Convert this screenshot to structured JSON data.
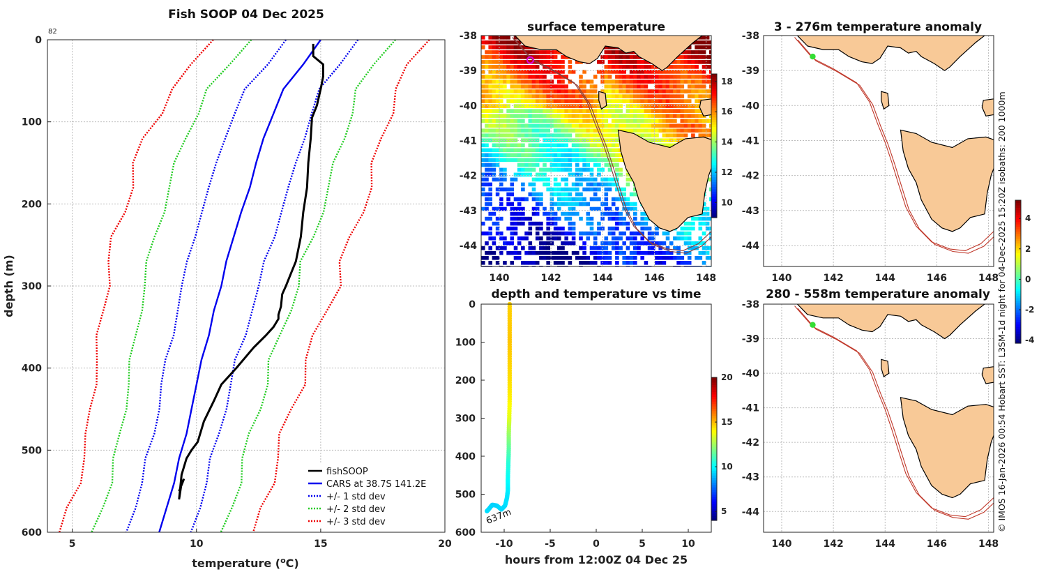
{
  "chart_data": [
    {
      "type": "line",
      "id": "profile",
      "title": "Fish SOOP 04 Dec 2025",
      "xlabel": "temperature (oC)",
      "ylabel": "depth (m)",
      "xlim": [
        4,
        20
      ],
      "ylim": [
        0,
        600
      ],
      "y_reversed": true,
      "xticks": [
        "5",
        "10",
        "15",
        "20"
      ],
      "xtick_values": [
        5,
        10,
        15,
        20
      ],
      "yticks": [
        "0",
        "100",
        "200",
        "300",
        "400",
        "500",
        "600"
      ],
      "ytick_values": [
        0,
        100,
        200,
        300,
        400,
        500,
        600
      ],
      "corner_label": "82",
      "depths": [
        0,
        30,
        60,
        90,
        120,
        150,
        180,
        210,
        240,
        270,
        300,
        330,
        360,
        390,
        420,
        450,
        480,
        510,
        540,
        570,
        600
      ],
      "cars_mean": [
        15.0,
        14.3,
        13.5,
        13.1,
        12.7,
        12.4,
        12.15,
        11.8,
        11.5,
        11.2,
        11.0,
        10.7,
        10.5,
        10.2,
        10.0,
        9.8,
        9.6,
        9.3,
        9.1,
        8.8,
        8.5
      ],
      "cars_std": [
        1.45,
        1.45,
        1.5,
        1.55,
        1.6,
        1.6,
        1.6,
        1.6,
        1.6,
        1.55,
        1.55,
        1.5,
        1.45,
        1.4,
        1.4,
        1.35,
        1.3,
        1.3,
        1.3,
        1.3,
        1.3
      ],
      "series": [
        {
          "name": "fishSOOP",
          "color": "#000000",
          "style": "solid",
          "temperature": [
            14.7,
            14.7,
            15.1,
            15.1,
            15.0,
            14.85,
            14.65,
            14.6,
            14.5,
            14.45,
            14.3,
            14.2,
            14.0,
            13.8,
            13.6,
            13.45,
            13.4,
            13.3,
            13.3,
            13.1,
            12.8,
            12.3,
            11.6,
            11.0,
            10.7,
            10.3,
            10.05,
            9.8,
            9.6,
            9.4,
            9.35,
            9.3,
            9.4,
            9.5,
            9.3
          ],
          "depth": [
            5,
            20,
            30,
            45,
            60,
            80,
            95,
            120,
            150,
            180,
            210,
            240,
            270,
            285,
            300,
            310,
            325,
            335,
            340,
            350,
            360,
            375,
            400,
            420,
            440,
            465,
            490,
            500,
            510,
            530,
            545,
            560,
            540,
            535,
            550
          ]
        },
        {
          "name": "CARS at 38.7S 141.2E",
          "color": "#0000ee",
          "style": "solid",
          "k": 0
        },
        {
          "name": "+/- 1 std dev",
          "color": "#0000ee",
          "style": "dotted",
          "k": 1
        },
        {
          "name": "+/- 2 std dev",
          "color": "#22cc22",
          "style": "dotted",
          "k": 2
        },
        {
          "name": "+/- 3 std dev",
          "color": "#ee0000",
          "style": "dotted",
          "k": 3
        }
      ]
    },
    {
      "type": "heatmap",
      "id": "sst",
      "title": "surface temperature",
      "xlim": [
        139.3,
        148.2
      ],
      "ylim": [
        -44.6,
        -38
      ],
      "xticks": [
        "140",
        "142",
        "144",
        "146",
        "148"
      ],
      "xtick_values": [
        140,
        142,
        144,
        146,
        148
      ],
      "yticks": [
        "-38",
        "-39",
        "-40",
        "-41",
        "-42",
        "-43",
        "-44"
      ],
      "ytick_values": [
        -38,
        -39,
        -40,
        -41,
        -42,
        -43,
        -44
      ],
      "colorbar": {
        "min": 9,
        "max": 18.5,
        "ticks": [
          "10",
          "12",
          "14",
          "16",
          "18"
        ],
        "tick_values": [
          10,
          12,
          14,
          16,
          18
        ]
      },
      "marker": {
        "lon": 141.2,
        "lat": -38.7
      }
    },
    {
      "type": "scatter",
      "id": "timeseries",
      "title": "depth and temperature vs time",
      "xlabel": "hours from 12:00Z 04 Dec 25",
      "xlim": [
        -12.5,
        12.5
      ],
      "ylim": [
        0,
        600
      ],
      "y_reversed": true,
      "xticks": [
        "-10",
        "-5",
        "0",
        "5",
        "10"
      ],
      "xtick_values": [
        -10,
        -5,
        0,
        5,
        10
      ],
      "yticks": [
        "0",
        "100",
        "200",
        "300",
        "400",
        "500",
        "600"
      ],
      "ytick_values": [
        0,
        100,
        200,
        300,
        400,
        500,
        600
      ],
      "colorbar": {
        "min": 4,
        "max": 20,
        "ticks": [
          "5",
          "10",
          "15",
          "20"
        ],
        "tick_values": [
          5,
          10,
          15,
          20
        ]
      },
      "hours": [
        -9.4,
        -9.4,
        -9.4,
        -9.4,
        -9.4,
        -9.4,
        -9.45,
        -9.5,
        -9.5,
        -9.55,
        -9.6,
        -9.6,
        -9.7,
        -9.9,
        -10.3,
        -10.8,
        -11.3,
        -11.7,
        -11.9
      ],
      "depth": [
        0,
        50,
        100,
        150,
        200,
        250,
        300,
        340,
        380,
        420,
        460,
        490,
        510,
        530,
        540,
        530,
        528,
        540,
        545
      ],
      "temperature": [
        14.7,
        14.8,
        14.9,
        14.7,
        14.5,
        14.2,
        13.6,
        12.5,
        11.5,
        10.6,
        10.1,
        9.8,
        9.6,
        9.5,
        9.4,
        9.4,
        9.3,
        9.4,
        9.5
      ],
      "annotation": "637m",
      "annotation_hour": -11.8,
      "annotation_depth": 560
    },
    {
      "type": "heatmap",
      "id": "anom1",
      "title": "3 - 276m temperature anomaly",
      "xlim": [
        139.3,
        148.2
      ],
      "ylim": [
        -44.6,
        -38
      ],
      "xticks": [
        "140",
        "142",
        "144",
        "146",
        "148"
      ],
      "xtick_values": [
        140,
        142,
        144,
        146,
        148
      ],
      "yticks": [
        "-38",
        "-39",
        "-40",
        "-41",
        "-42",
        "-43",
        "-44"
      ],
      "ytick_values": [
        -38,
        -39,
        -40,
        -41,
        -42,
        -43,
        -44
      ],
      "marker": {
        "lon": 141.2,
        "lat": -38.6
      },
      "colorbar": {
        "min": -4.2,
        "max": 5.2,
        "ticks": [
          "-4",
          "-2",
          "0",
          "2",
          "4"
        ],
        "tick_values": [
          -4,
          -2,
          0,
          2,
          4
        ]
      }
    },
    {
      "type": "heatmap",
      "id": "anom2",
      "title": "280 - 558m temperature anomaly",
      "xlim": [
        139.3,
        148.2
      ],
      "ylim": [
        -44.6,
        -38
      ],
      "xticks": [
        "140",
        "142",
        "144",
        "146",
        "148"
      ],
      "xtick_values": [
        140,
        142,
        144,
        146,
        148
      ],
      "yticks": [
        "-38",
        "-39",
        "-40",
        "-41",
        "-42",
        "-43",
        "-44"
      ],
      "ytick_values": [
        -38,
        -39,
        -40,
        -41,
        -42,
        -43,
        -44
      ],
      "marker": {
        "lon": 141.2,
        "lat": -38.6
      }
    }
  ],
  "side_note": "© IMOS 16-Jan-2026 00:54 Hobart SST: L3SM-1d night for 04-Dec-2025 15:20Z isobaths: 200  1000m",
  "colors": {
    "land": "#f8c997",
    "isobath": "#c0392b",
    "marker_sst": "#e000e0",
    "marker_anom": "#33dd33"
  }
}
